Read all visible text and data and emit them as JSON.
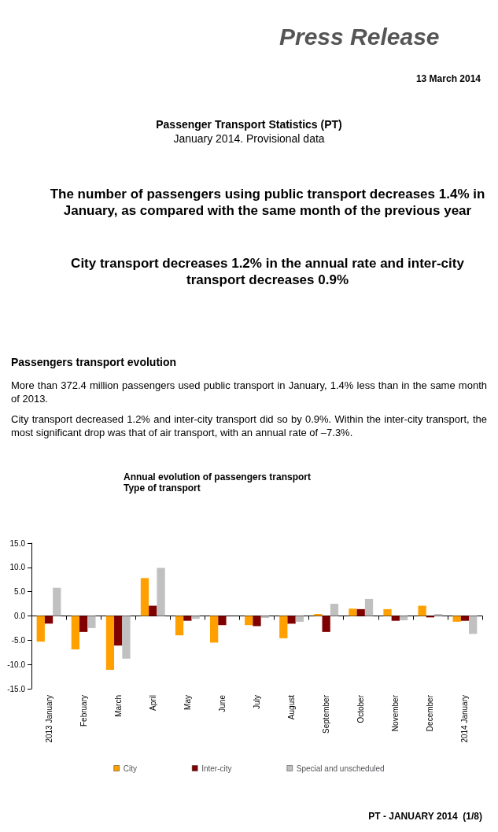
{
  "chart_data": {
    "type": "bar",
    "title": "Annual evolution of passengers transport",
    "subtitle": "Type of transport",
    "annotations": [
      "Press Release",
      "13 March 2014",
      "Passenger Transport Statistics (PT)",
      "January 2014. Provisional data",
      "The number of passengers using public transport decreases 1.4% in January, as compared with the same month of the previous year",
      "City transport decreases 1.2% in the annual rate and inter-city transport decreases 0.9%",
      "Passengers transport evolution",
      "More than 372.4 million passengers used public transport in January, 1.4% less than in the same month of 2013.",
      "City transport decreased 1.2% and inter-city transport did so by 0.9%. Within the inter-city transport, the most significant drop was that of air transport, with an annual rate of –7.3%.",
      "PT - JANUARY 2014  (1/8)"
    ],
    "categories": [
      "2013 January",
      "February",
      "March",
      "April",
      "May",
      "June",
      "July",
      "August",
      "September",
      "October",
      "November",
      "December",
      "2014 January"
    ],
    "series": [
      {
        "name": "City",
        "color": "#ffa000",
        "values": [
          -5.3,
          -6.9,
          -11.1,
          7.8,
          -4.0,
          -5.5,
          -1.9,
          -4.6,
          0.4,
          1.5,
          1.4,
          2.1,
          -1.2
        ]
      },
      {
        "name": "Inter-city",
        "color": "#800000",
        "values": [
          -1.6,
          -3.3,
          -6.1,
          2.1,
          -1.0,
          -1.9,
          -2.1,
          -1.6,
          -3.3,
          1.4,
          -1.0,
          -0.3,
          -1.0
        ]
      },
      {
        "name": "Special and unscheduled",
        "color": "#c0c0c0",
        "values": [
          5.8,
          -2.5,
          -8.8,
          9.9,
          -0.6,
          null,
          -0.4,
          -1.2,
          2.5,
          3.5,
          -0.9,
          0.4,
          -3.7
        ]
      }
    ],
    "ylim": [
      -15,
      15
    ],
    "yticks": [
      {
        "value": -15,
        "label": "-15.0"
      },
      {
        "value": -10,
        "label": "-10.0"
      },
      {
        "value": -5,
        "label": "-5.0"
      },
      {
        "value": 0,
        "label": "0.0"
      },
      {
        "value": 5,
        "label": "5.0"
      },
      {
        "value": 10,
        "label": "10.0"
      },
      {
        "value": 15,
        "label": "15.0"
      }
    ],
    "legend": "bottom"
  }
}
